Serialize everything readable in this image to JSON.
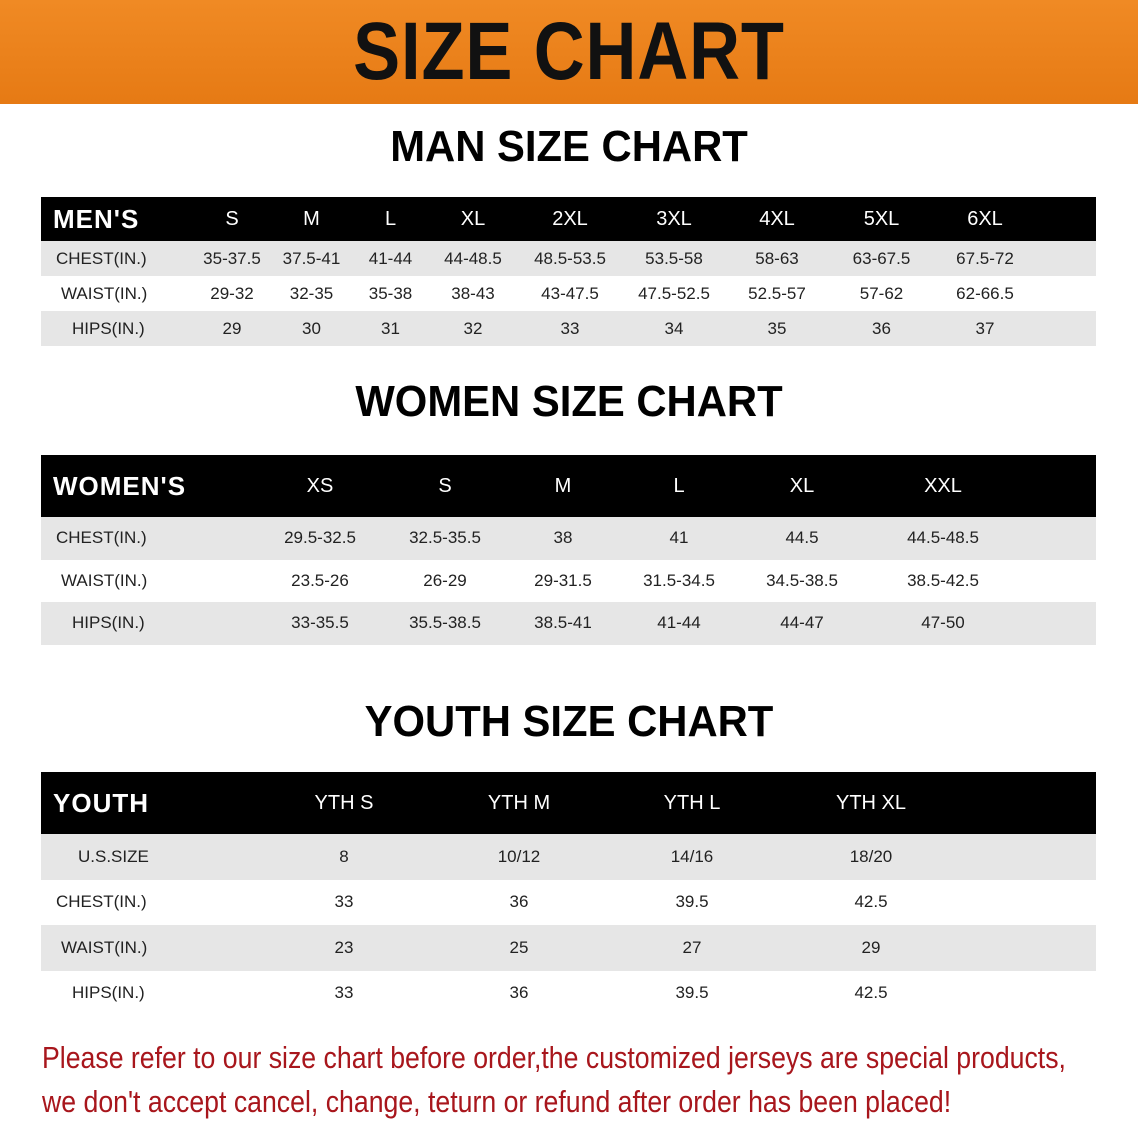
{
  "title": "SIZE CHART",
  "men": {
    "section_title": "MAN SIZE CHART",
    "header": [
      "MEN'S",
      "S",
      "M",
      "L",
      "XL",
      "2XL",
      "3XL",
      "4XL",
      "5XL",
      "6XL"
    ],
    "rows": [
      [
        "CHEST(IN.)",
        "35-37.5",
        "37.5-41",
        "41-44",
        "44-48.5",
        "48.5-53.5",
        "53.5-58",
        "58-63",
        "63-67.5",
        "67.5-72"
      ],
      [
        "WAIST(IN.)",
        "29-32",
        "32-35",
        "35-38",
        "38-43",
        "43-47.5",
        "47.5-52.5",
        "52.5-57",
        "57-62",
        "62-66.5"
      ],
      [
        "HIPS(IN.)",
        "29",
        "30",
        "31",
        "32",
        "33",
        "34",
        "35",
        "36",
        "37"
      ]
    ]
  },
  "women": {
    "section_title": "WOMEN SIZE CHART",
    "header": [
      "WOMEN'S",
      "XS",
      "S",
      "M",
      "L",
      "XL",
      "XXL"
    ],
    "rows": [
      [
        "CHEST(IN.)",
        "29.5-32.5",
        "32.5-35.5",
        "38",
        "41",
        "44.5",
        "44.5-48.5"
      ],
      [
        "WAIST(IN.)",
        "23.5-26",
        "26-29",
        "29-31.5",
        "31.5-34.5",
        "34.5-38.5",
        "38.5-42.5"
      ],
      [
        "HIPS(IN.)",
        "33-35.5",
        "35.5-38.5",
        "38.5-41",
        "41-44",
        "44-47",
        "47-50"
      ]
    ]
  },
  "youth": {
    "section_title": "YOUTH SIZE CHART",
    "header": [
      "YOUTH",
      "YTH S",
      "YTH M",
      "YTH L",
      "YTH XL"
    ],
    "rows": [
      [
        "U.S.SIZE",
        "8",
        "10/12",
        "14/16",
        "18/20"
      ],
      [
        "CHEST(IN.)",
        "33",
        "36",
        "39.5",
        "42.5"
      ],
      [
        "WAIST(IN.)",
        "23",
        "25",
        "27",
        "29"
      ],
      [
        "HIPS(IN.)",
        "33",
        "36",
        "39.5",
        "42.5"
      ]
    ]
  },
  "notice": [
    "Please refer to our size chart before order,the customized jerseys are special products,",
    "we don't accept cancel, change, teturn or refund after order has been placed!"
  ],
  "colors": {
    "banner": "#e67a14",
    "header_row": "#000000",
    "stripe": "#e6e6e6",
    "notice": "#a8161c"
  }
}
